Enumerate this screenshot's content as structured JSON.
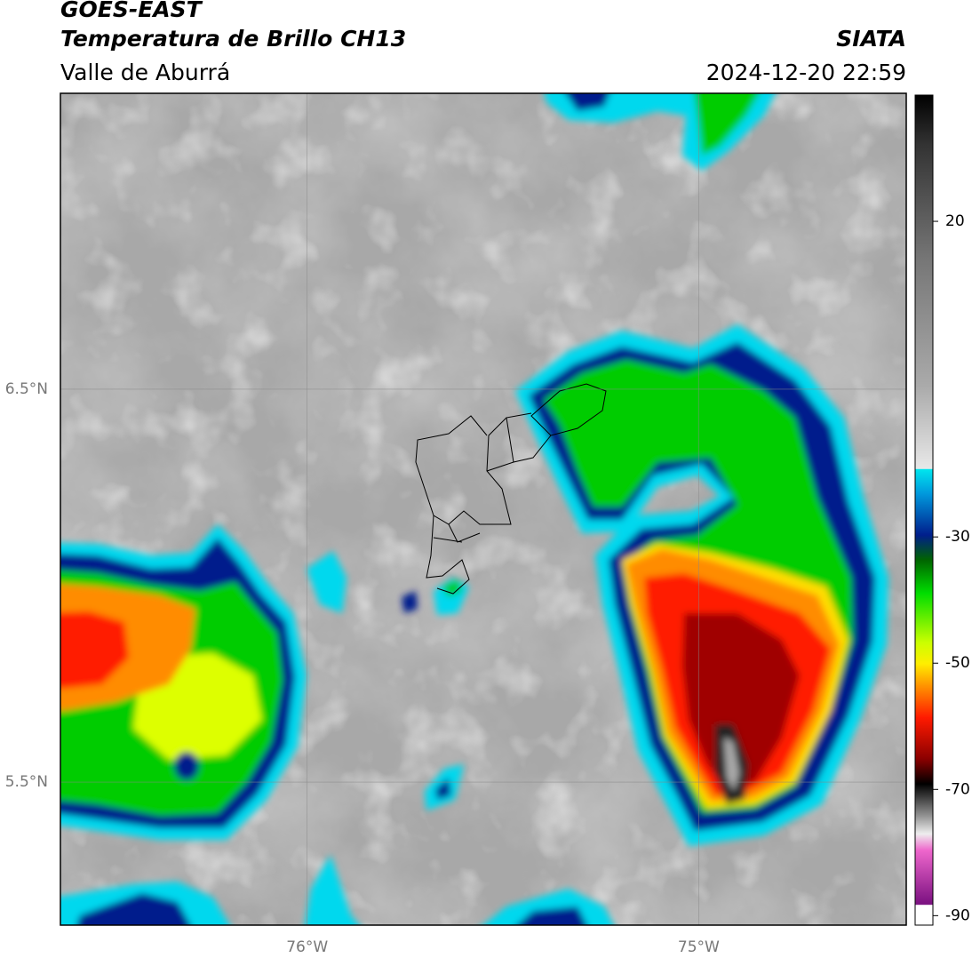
{
  "header": {
    "satellite": "GOES-EAST",
    "product": "Temperatura de Brillo CH13",
    "region": "Valle de Aburrá",
    "source": "SIATA",
    "timestamp": "2024-12-20 22:59"
  },
  "map": {
    "xlim": [
      -76.63,
      -74.47
    ],
    "ylim": [
      5.136,
      7.253
    ],
    "xticks": [
      {
        "value": -76,
        "label": "76°W"
      },
      {
        "value": -75,
        "label": "75°W"
      }
    ],
    "yticks": [
      {
        "value": 6.5,
        "label": "6.5°N"
      },
      {
        "value": 5.5,
        "label": "5.5°N"
      }
    ],
    "grid": true
  },
  "colorbar": {
    "clim": [
      -91.5,
      40
    ],
    "ticks": [
      20,
      -30,
      -50,
      -70,
      -90
    ]
  }
}
